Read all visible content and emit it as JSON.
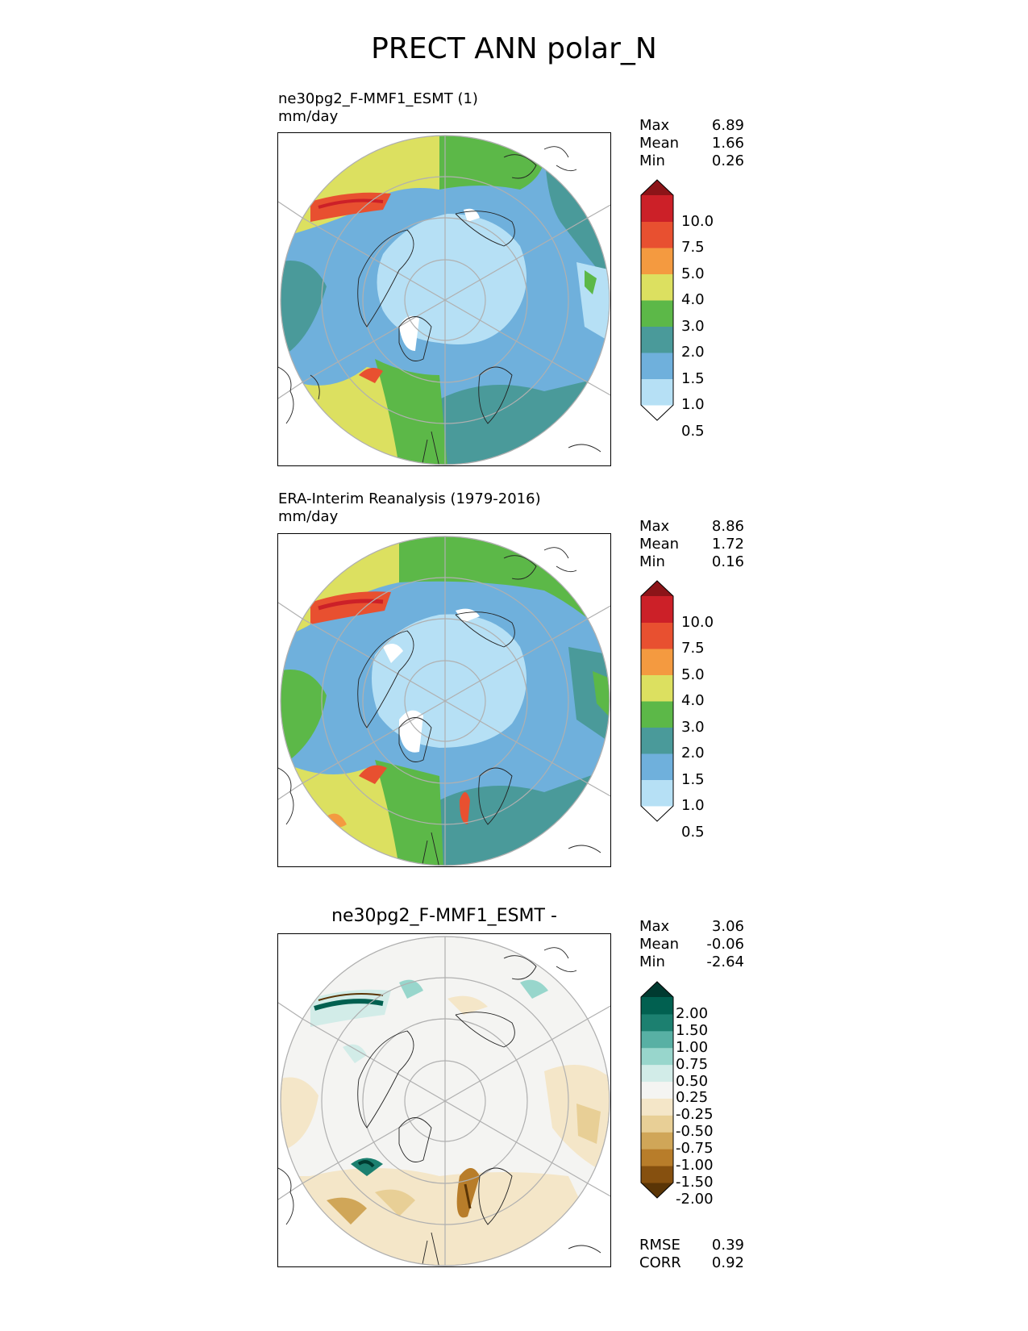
{
  "title": "PRECT ANN polar_N",
  "panels": [
    {
      "id": "test",
      "title_line1": "ne30pg2_F-MMF1_ESMT (1)",
      "title_line2": "mm/day",
      "stats": [
        {
          "label": "Max",
          "value": "6.89"
        },
        {
          "label": "Mean",
          "value": "1.66"
        },
        {
          "label": "Min",
          "value": "0.26"
        }
      ],
      "colorbar": {
        "ticks": [
          "10.0",
          "7.5",
          "5.0",
          "4.0",
          "3.0",
          "2.0",
          "1.5",
          "1.0",
          "0.5"
        ],
        "colors": [
          "#ffffff",
          "#b6e0f5",
          "#6fb0dc",
          "#4a9a9a",
          "#5cb848",
          "#dce060",
          "#f49a40",
          "#e85030",
          "#cc2028",
          "#8c1418"
        ]
      }
    },
    {
      "id": "reference",
      "title_line1": "ERA-Interim Reanalysis (1979-2016)",
      "title_line2": "mm/day",
      "stats": [
        {
          "label": "Max",
          "value": "8.86"
        },
        {
          "label": "Mean",
          "value": "1.72"
        },
        {
          "label": "Min",
          "value": "0.16"
        }
      ],
      "colorbar": {
        "ticks": [
          "10.0",
          "7.5",
          "5.0",
          "4.0",
          "3.0",
          "2.0",
          "1.5",
          "1.0",
          "0.5"
        ],
        "colors": [
          "#ffffff",
          "#b6e0f5",
          "#6fb0dc",
          "#4a9a9a",
          "#5cb848",
          "#dce060",
          "#f49a40",
          "#e85030",
          "#cc2028",
          "#8c1418"
        ]
      }
    },
    {
      "id": "difference",
      "title_line1": "ne30pg2_F-MMF1_ESMT -",
      "stats": [
        {
          "label": "Max",
          "value": "3.06"
        },
        {
          "label": "Mean",
          "value": "-0.06"
        },
        {
          "label": "Min",
          "value": "-2.64"
        }
      ],
      "metrics": [
        {
          "label": "RMSE",
          "value": "0.39"
        },
        {
          "label": "CORR",
          "value": "0.92"
        }
      ],
      "colorbar": {
        "ticks": [
          "2.00",
          "1.50",
          "1.00",
          "0.75",
          "0.50",
          "0.25",
          "-0.25",
          "-0.50",
          "-0.75",
          "-1.00",
          "-1.50",
          "-2.00"
        ],
        "colors": [
          "#5a3506",
          "#86500f",
          "#b87d2a",
          "#d0a658",
          "#e8cf96",
          "#f4e6c8",
          "#f4f4f2",
          "#d2ece8",
          "#98d6cc",
          "#58b0a4",
          "#1c8070",
          "#016050",
          "#003a30"
        ]
      }
    }
  ]
}
